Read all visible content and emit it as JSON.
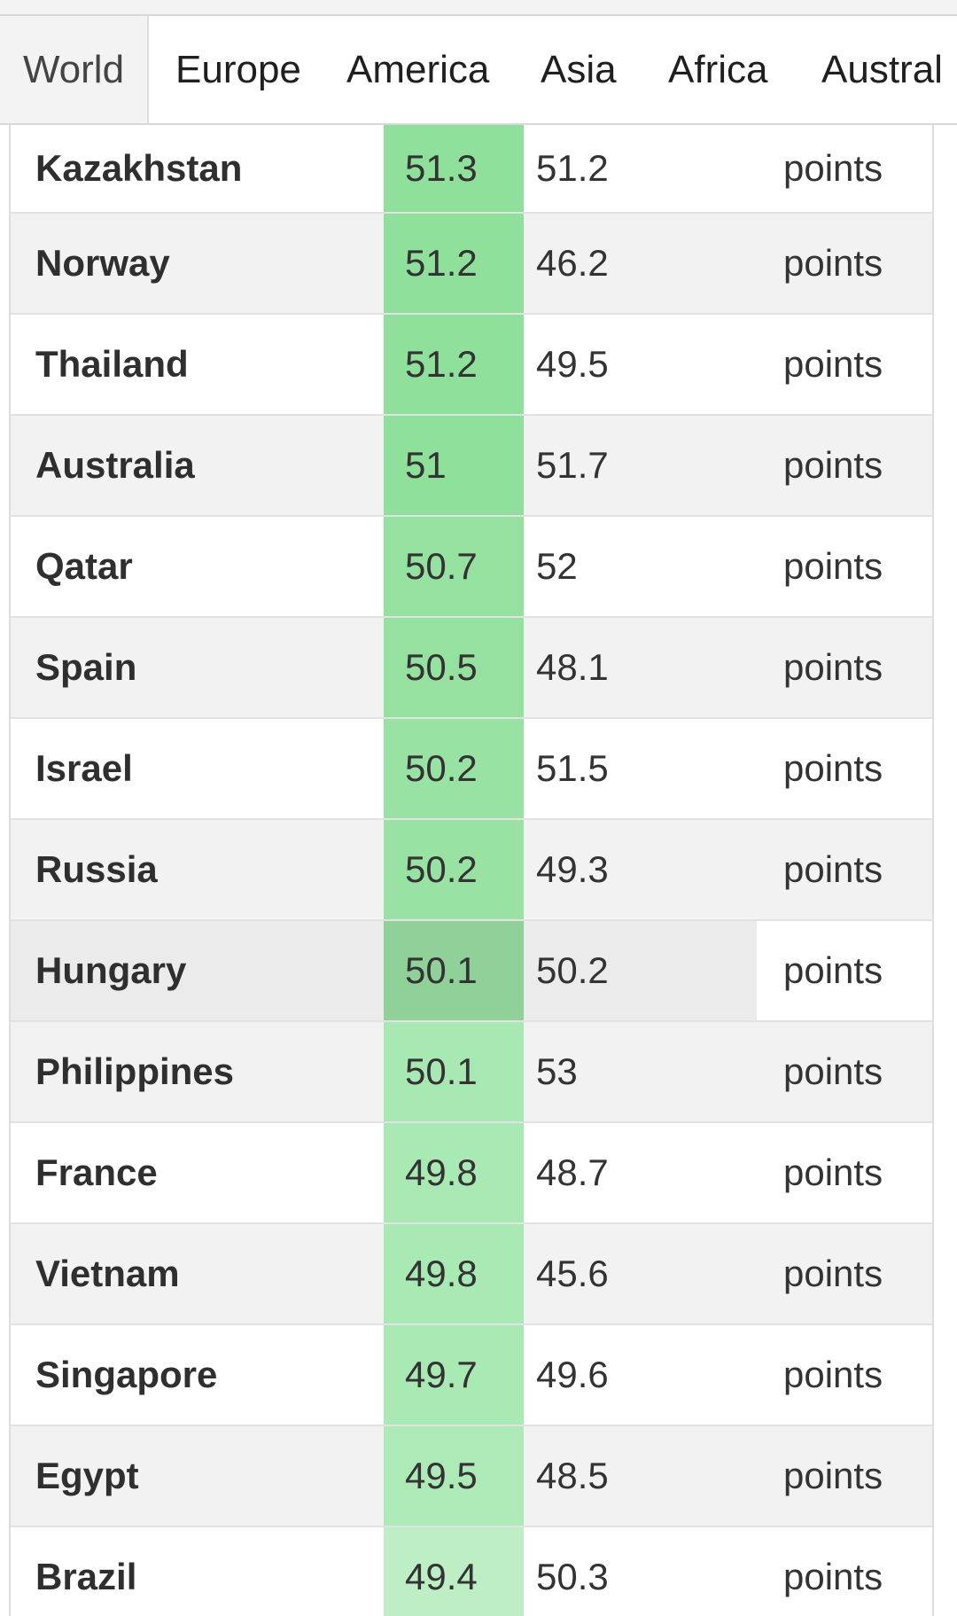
{
  "tabs": [
    {
      "label": "World",
      "active": true
    },
    {
      "label": "Europe",
      "active": false
    },
    {
      "label": "America",
      "active": false
    },
    {
      "label": "Asia",
      "active": false
    },
    {
      "label": "Africa",
      "active": false
    },
    {
      "label": "Austral",
      "active": false
    }
  ],
  "rows": [
    {
      "country": "Kazakhstan",
      "v1": "51.3",
      "v2": "51.2",
      "unit": "points",
      "shade": "#8ee09a"
    },
    {
      "country": "Norway",
      "v1": "51.2",
      "v2": "46.2",
      "unit": "points",
      "shade": "#8ee09a"
    },
    {
      "country": "Thailand",
      "v1": "51.2",
      "v2": "49.5",
      "unit": "points",
      "shade": "#8ee09a"
    },
    {
      "country": "Australia",
      "v1": "51",
      "v2": "51.7",
      "unit": "points",
      "shade": "#8ee09a"
    },
    {
      "country": "Qatar",
      "v1": "50.7",
      "v2": "52",
      "unit": "points",
      "shade": "#95e2a0"
    },
    {
      "country": "Spain",
      "v1": "50.5",
      "v2": "48.1",
      "unit": "points",
      "shade": "#95e2a0"
    },
    {
      "country": "Israel",
      "v1": "50.2",
      "v2": "51.5",
      "unit": "points",
      "shade": "#98e3a3"
    },
    {
      "country": "Russia",
      "v1": "50.2",
      "v2": "49.3",
      "unit": "points",
      "shade": "#98e3a3"
    },
    {
      "country": "Hungary",
      "v1": "50.1",
      "v2": "50.2",
      "unit": "points",
      "shade": "#8fd198"
    },
    {
      "country": "Philippines",
      "v1": "50.1",
      "v2": "53",
      "unit": "points",
      "shade": "#a8e8b2"
    },
    {
      "country": "France",
      "v1": "49.8",
      "v2": "48.7",
      "unit": "points",
      "shade": "#a9e9b3"
    },
    {
      "country": "Vietnam",
      "v1": "49.8",
      "v2": "45.6",
      "unit": "points",
      "shade": "#a9e9b3"
    },
    {
      "country": "Singapore",
      "v1": "49.7",
      "v2": "49.6",
      "unit": "points",
      "shade": "#a9e9b3"
    },
    {
      "country": "Egypt",
      "v1": "49.5",
      "v2": "48.5",
      "unit": "points",
      "shade": "#aeeab7"
    },
    {
      "country": "Brazil",
      "v1": "49.4",
      "v2": "50.3",
      "unit": "points",
      "shade": "#bdeec4"
    }
  ],
  "highlighted_row_index": 8
}
